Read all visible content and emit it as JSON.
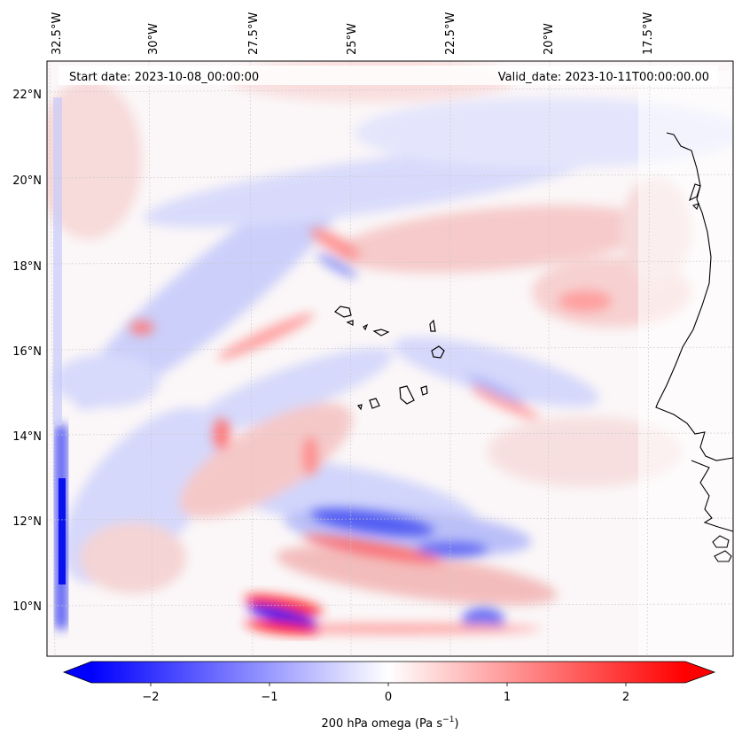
{
  "map": {
    "start_label": "Start date: 2023-10-08_00:00:00",
    "valid_label": "Valid_date: 2023-10-11T00:00:00.00",
    "lon_ticks": [
      "32.5°W",
      "30°W",
      "27.5°W",
      "25°W",
      "22.5°W",
      "20°W",
      "17.5°W"
    ],
    "lat_ticks": [
      "22°N",
      "20°N",
      "18°N",
      "16°N",
      "14°N",
      "12°N",
      "10°N"
    ]
  },
  "colorbar": {
    "ticks": [
      "−2",
      "−1",
      "0",
      "1",
      "2"
    ],
    "label_main": "200 hPa omega (Pa s",
    "label_sup": "−1",
    "label_end": ")",
    "range": [
      -2.6,
      2.6
    ],
    "colors": {
      "low": "#0000ff",
      "mid": "#ffffff",
      "high": "#ff0000"
    }
  }
}
